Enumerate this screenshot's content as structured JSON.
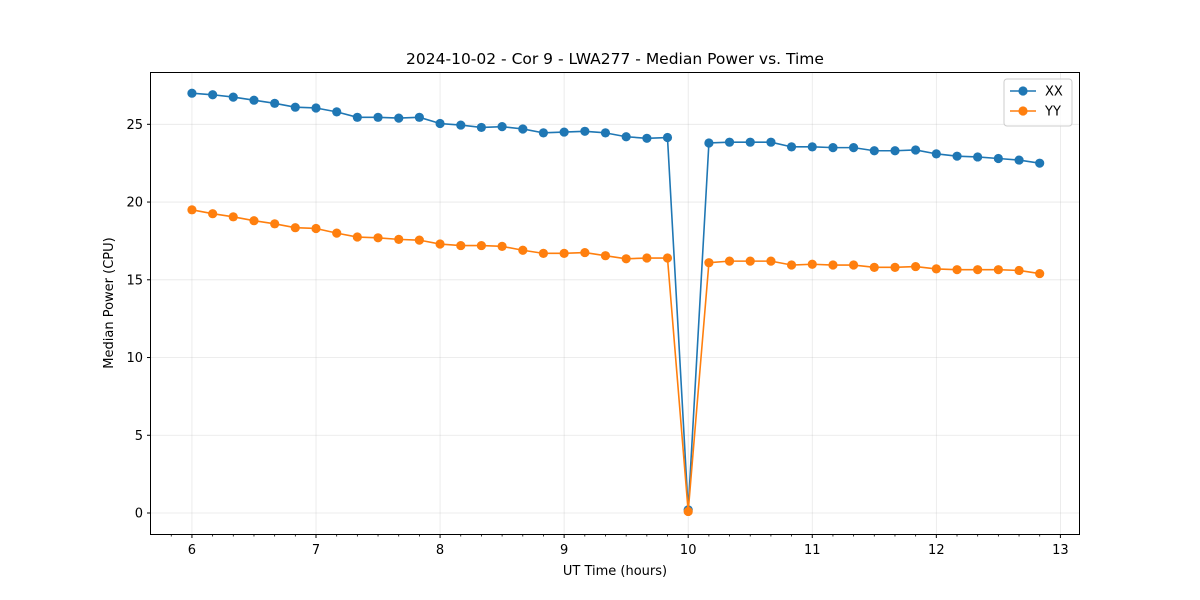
{
  "chart_data": {
    "type": "line",
    "title": "2024-10-02 - Cor 9 - LWA277 - Median Power vs. Time",
    "xlabel": "UT Time (hours)",
    "ylabel": "Median Power (CPU)",
    "xlim": [
      5.67,
      13.15
    ],
    "ylim": [
      -1.35,
      28.3
    ],
    "xticks": [
      6,
      7,
      8,
      9,
      10,
      11,
      12,
      13
    ],
    "yticks": [
      0,
      5,
      10,
      15,
      20,
      25
    ],
    "grid": true,
    "legend_position": "top-right",
    "x": [
      6.0,
      6.167,
      6.333,
      6.5,
      6.667,
      6.833,
      7.0,
      7.167,
      7.333,
      7.5,
      7.667,
      7.833,
      8.0,
      8.167,
      8.333,
      8.5,
      8.667,
      8.833,
      9.0,
      9.167,
      9.333,
      9.5,
      9.667,
      9.833,
      10.0,
      10.167,
      10.333,
      10.5,
      10.667,
      10.833,
      11.0,
      11.167,
      11.333,
      11.5,
      11.667,
      11.833,
      12.0,
      12.167,
      12.333,
      12.5,
      12.667,
      12.833
    ],
    "series": [
      {
        "name": "XX",
        "color": "#1f77b4",
        "values": [
          27.0,
          26.9,
          26.75,
          26.55,
          26.35,
          26.1,
          26.05,
          25.8,
          25.45,
          25.45,
          25.4,
          25.45,
          25.05,
          24.95,
          24.8,
          24.85,
          24.7,
          24.45,
          24.5,
          24.55,
          24.45,
          24.2,
          24.1,
          24.15,
          0.2,
          23.8,
          23.85,
          23.85,
          23.85,
          23.55,
          23.55,
          23.5,
          23.5,
          23.3,
          23.3,
          23.35,
          23.1,
          22.95,
          22.9,
          22.8,
          22.7,
          22.5
        ]
      },
      {
        "name": "YY",
        "color": "#ff7f0e",
        "values": [
          19.5,
          19.25,
          19.05,
          18.8,
          18.6,
          18.35,
          18.3,
          18.0,
          17.75,
          17.7,
          17.6,
          17.55,
          17.3,
          17.2,
          17.2,
          17.15,
          16.9,
          16.7,
          16.7,
          16.75,
          16.55,
          16.35,
          16.4,
          16.4,
          0.1,
          16.1,
          16.2,
          16.2,
          16.2,
          15.95,
          16.0,
          15.95,
          15.95,
          15.8,
          15.8,
          15.85,
          15.7,
          15.65,
          15.65,
          15.65,
          15.6,
          15.4
        ]
      }
    ]
  }
}
